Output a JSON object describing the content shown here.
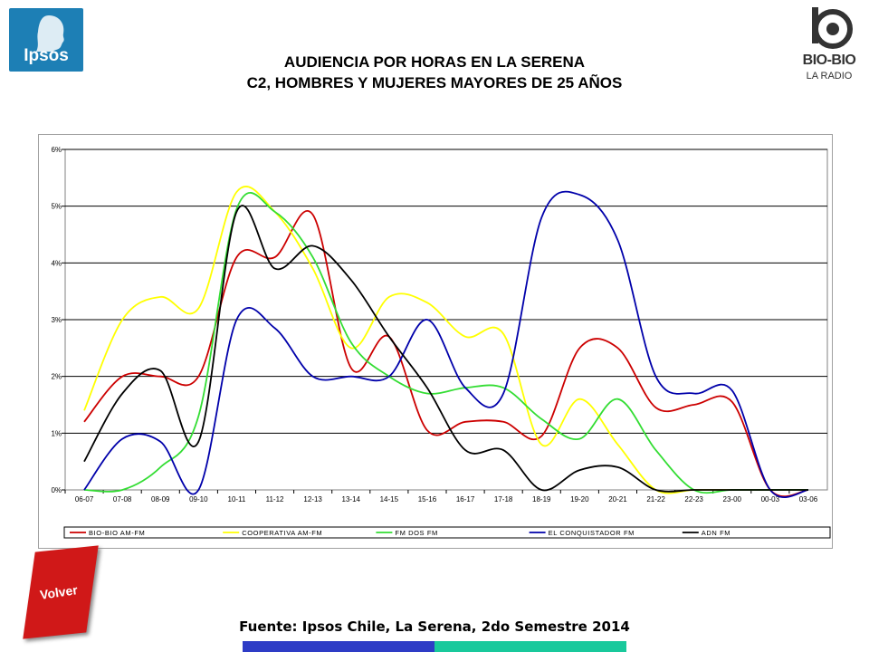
{
  "header": {
    "title_line1": "AUDIENCIA POR HORAS EN LA SERENA",
    "title_line2": "C2, HOMBRES Y MUJERES MAYORES DE 25 AÑOS"
  },
  "logos": {
    "ipsos": "Ipsos",
    "biobio_name": "BIO-BIO",
    "biobio_sub": "LA RADIO"
  },
  "buttons": {
    "volver": "Volver"
  },
  "footer": {
    "source": "Fuente: Ipsos Chile, La Serena, 2do Semestre 2014"
  },
  "colors": {
    "ipsos_blue": "#1d7fb5",
    "volver_red": "#d01818",
    "bar_blue": "#2e3cc6",
    "bar_teal": "#19c99c"
  },
  "chart_data": {
    "type": "line",
    "categories": [
      "06-07",
      "07-08",
      "08-09",
      "09-10",
      "10-11",
      "11-12",
      "12-13",
      "13-14",
      "14-15",
      "15-16",
      "16-17",
      "17-18",
      "18-19",
      "19-20",
      "20-21",
      "21-22",
      "22-23",
      "23-00",
      "00-03",
      "03-06"
    ],
    "yticks": [
      "0%",
      "1%",
      "2%",
      "3%",
      "4%",
      "5%",
      "6%"
    ],
    "ylim": [
      0,
      6
    ],
    "grid": true,
    "legend_position": "bottom",
    "series": [
      {
        "name": "BIO-BIO AM-FM",
        "color": "#cc0000",
        "values": [
          1.2,
          2.0,
          2.0,
          2.0,
          4.1,
          4.1,
          4.85,
          2.15,
          2.7,
          1.05,
          1.2,
          1.2,
          0.95,
          2.5,
          2.5,
          1.45,
          1.5,
          1.55,
          0.0,
          0.0
        ]
      },
      {
        "name": "COOPERATIVA AM-FM",
        "color": "#ffff00",
        "values": [
          1.4,
          3.0,
          3.4,
          3.2,
          5.25,
          4.9,
          3.9,
          2.5,
          3.4,
          3.3,
          2.7,
          2.75,
          0.8,
          1.6,
          0.8,
          0.0,
          0.0,
          0.0,
          0.0,
          0.0
        ]
      },
      {
        "name": "FM DOS FM",
        "color": "#33dd33",
        "values": [
          0.0,
          0.0,
          0.4,
          1.3,
          4.95,
          4.9,
          4.1,
          2.6,
          2.0,
          1.7,
          1.8,
          1.8,
          1.25,
          0.9,
          1.6,
          0.7,
          0.0,
          0.0,
          0.0,
          0.0
        ]
      },
      {
        "name": "EL CONQUISTADOR FM",
        "color": "#0000aa",
        "values": [
          0.0,
          0.9,
          0.85,
          0.0,
          3.0,
          2.85,
          2.0,
          2.0,
          2.0,
          3.0,
          1.8,
          1.7,
          4.8,
          5.2,
          4.4,
          2.0,
          1.7,
          1.75,
          0.0,
          0.0
        ]
      },
      {
        "name": "ADN FM",
        "color": "#000000",
        "values": [
          0.5,
          1.7,
          2.1,
          0.85,
          4.9,
          3.9,
          4.3,
          3.7,
          2.7,
          1.8,
          0.7,
          0.7,
          0.0,
          0.35,
          0.4,
          0.0,
          0.0,
          0.0,
          0.0,
          0.0
        ]
      }
    ]
  }
}
